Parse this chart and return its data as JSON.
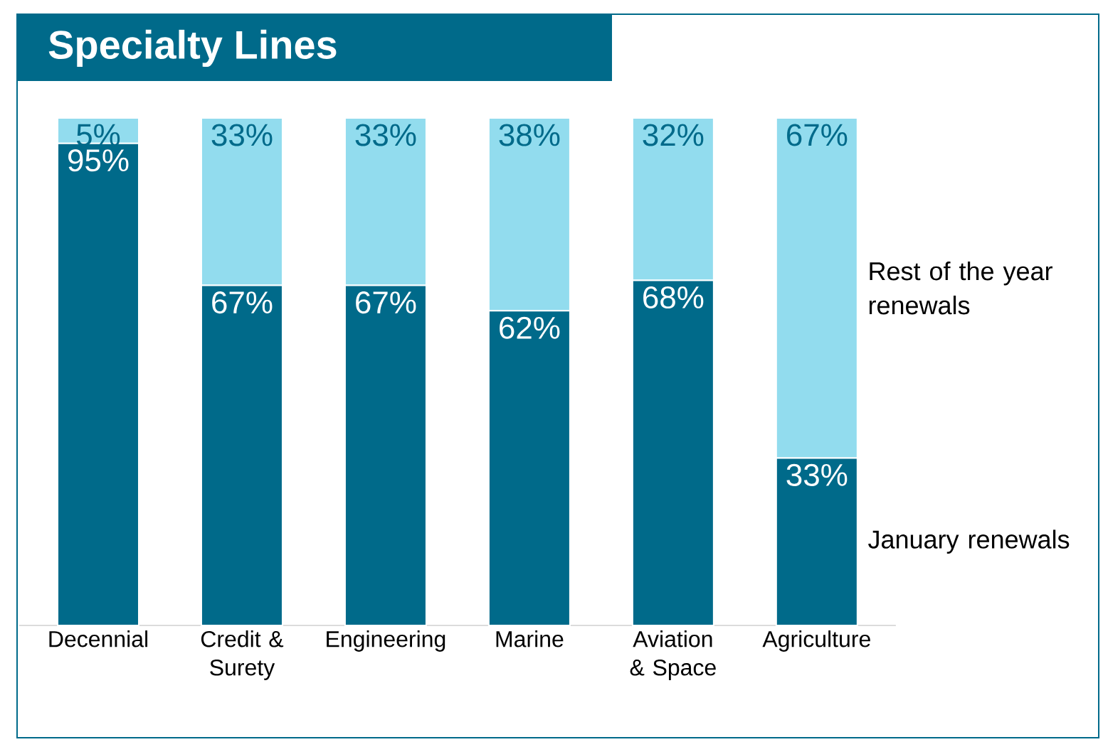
{
  "chart_data": {
    "type": "bar",
    "title": "Specialty Lines",
    "stacked": true,
    "categories": [
      "Decennial",
      "Credit & Surety",
      "Engineering",
      "Marine",
      "Aviation & Space",
      "Agriculture"
    ],
    "series": [
      {
        "name": "January renewals",
        "color": "#006a8a",
        "values": [
          95,
          67,
          67,
          62,
          68,
          33
        ],
        "value_labels": [
          "95%",
          "67%",
          "67%",
          "62%",
          "68%",
          "33%"
        ]
      },
      {
        "name": "Rest of the year renewals",
        "color": "#92dcee",
        "values": [
          5,
          33,
          33,
          38,
          32,
          67
        ],
        "value_labels": [
          "5%",
          "33%",
          "33%",
          "38%",
          "32%",
          "67%"
        ]
      }
    ],
    "ylim": [
      0,
      100
    ],
    "tick_labels": "x"
  }
}
